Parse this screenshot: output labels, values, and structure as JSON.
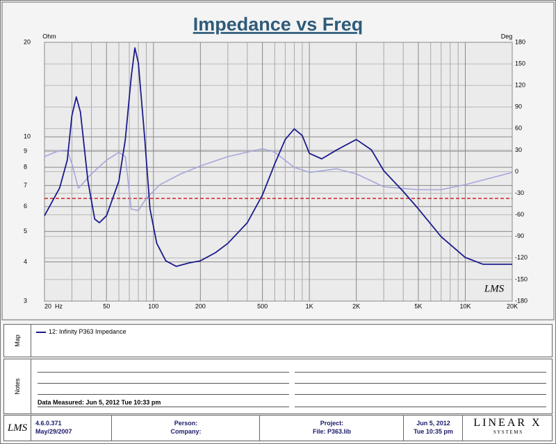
{
  "chart_data": {
    "type": "line",
    "title": "Impedance vs Freq",
    "y_label": "Ohm",
    "y2_label": "Deg",
    "watermark": "LMS",
    "xscale": "log",
    "yscale": "log",
    "grid": true,
    "xlim": [
      20,
      20000
    ],
    "ylim": [
      3,
      20
    ],
    "y2lim": [
      -180,
      180
    ],
    "xticks": [
      {
        "value": 20,
        "label": "20  Hz"
      },
      50,
      100,
      200,
      500,
      {
        "value": 1000,
        "label": "1K"
      },
      {
        "value": 2000,
        "label": "2K"
      },
      {
        "value": 5000,
        "label": "5K"
      },
      {
        "value": 10000,
        "label": "10K"
      },
      {
        "value": 20000,
        "label": "20K"
      }
    ],
    "xminor": [
      30,
      40,
      60,
      70,
      80,
      90,
      300,
      400,
      600,
      700,
      800,
      900,
      3000,
      4000,
      6000,
      7000,
      8000,
      9000
    ],
    "yticks": [
      3,
      4,
      5,
      6,
      7,
      8,
      9,
      10,
      20
    ],
    "y2ticks": [
      -180,
      -150,
      -120,
      -90,
      -60,
      -30,
      0,
      30,
      60,
      90,
      120,
      150,
      180
    ],
    "reference_line": {
      "value": 6.37,
      "color": "#cc2222"
    },
    "series": [
      {
        "name": "12: Infinity P363 Impedance",
        "color": "#1a1a8c",
        "x": [
          20,
          25,
          28,
          30,
          32,
          34,
          38,
          42,
          45,
          50,
          60,
          66,
          72,
          76,
          80,
          88,
          95,
          105,
          120,
          140,
          170,
          200,
          250,
          300,
          400,
          500,
          600,
          700,
          800,
          900,
          1000,
          1200,
          1500,
          2000,
          2500,
          3000,
          4000,
          5000,
          7000,
          10000,
          13000,
          20000
        ],
        "values": [
          5.61,
          6.87,
          8.43,
          11.7,
          13.4,
          12.0,
          7.23,
          5.47,
          5.33,
          5.61,
          7.23,
          9.81,
          15.5,
          19.2,
          17.2,
          9.81,
          5.9,
          4.58,
          4.03,
          3.87,
          3.97,
          4.03,
          4.28,
          4.58,
          5.33,
          6.53,
          8.21,
          9.81,
          10.6,
          10.1,
          8.86,
          8.51,
          9.09,
          9.81,
          9.09,
          7.8,
          6.7,
          5.9,
          4.81,
          4.13,
          3.93,
          3.93
        ]
      },
      {
        "color": "#a6a6dc",
        "axis": "y2",
        "x": [
          20,
          24,
          28,
          30,
          33,
          40,
          50,
          60,
          66,
          72,
          80,
          90,
          110,
          150,
          200,
          300,
          500,
          600,
          800,
          1000,
          1500,
          2000,
          3000,
          5000,
          7000,
          10000,
          20000
        ],
        "values": [
          21,
          28,
          30,
          11,
          -23,
          -3,
          16,
          27,
          21,
          -52,
          -54,
          -37,
          -18,
          -3,
          8,
          21,
          32,
          27,
          6,
          -1,
          4,
          -3,
          -21,
          -25,
          -25,
          -18,
          -1
        ]
      }
    ]
  },
  "map": {
    "title": "Map"
  },
  "notes": {
    "title": "Notes",
    "text": "Data Measured: Jun  5, 2012  Tue 10:33 pm"
  },
  "footer": {
    "logo": "LMS",
    "version": "4.6.0.371",
    "version_date": "May/29/2007",
    "person": "Person:",
    "company": "Company:",
    "project": "Project:",
    "file": "File: P363.lib",
    "date": "Jun  5, 2012",
    "time": "Tue 10:35 pm",
    "brand": "LINEAR X",
    "brand_sub": "S Y S T E M S"
  }
}
